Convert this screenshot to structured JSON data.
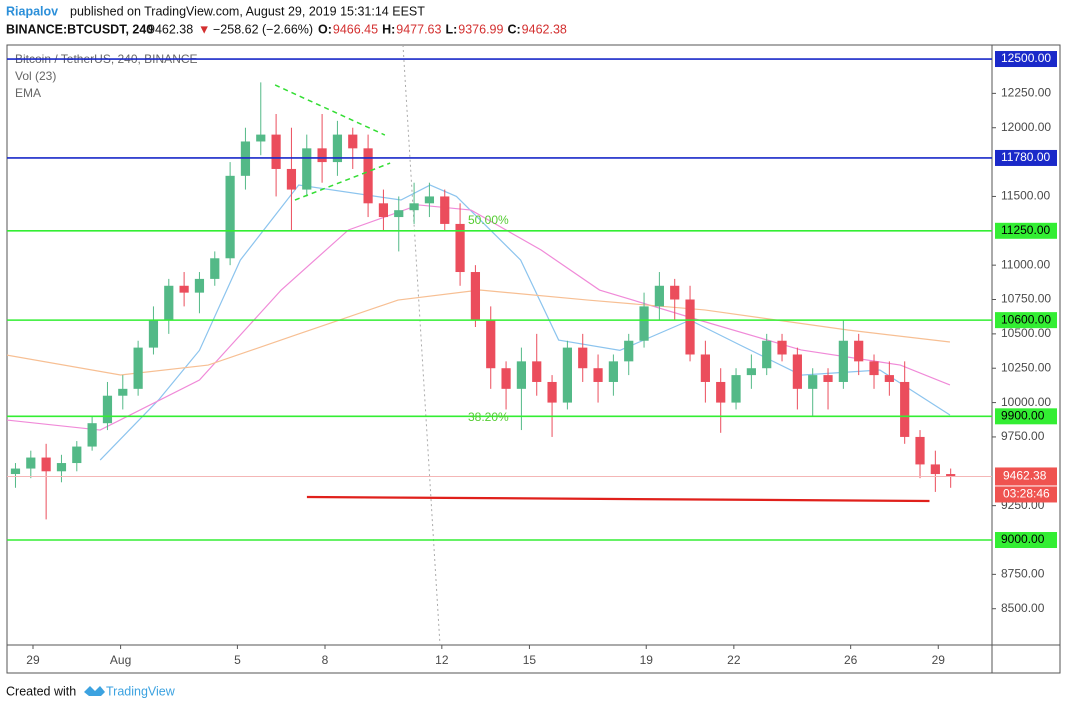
{
  "header": {
    "author": "Riapalov",
    "published": "published on TradingView.com, August 29, 2019 15:31:14 EEST",
    "symbol": "BINANCE:BTCUSDT, 240",
    "last": "9462.38",
    "arrow": "▼",
    "change": "−258.62 (−2.66%)",
    "ohlc": [
      {
        "label": "O:",
        "value": "9466.45"
      },
      {
        "label": "H:",
        "value": "9477.63"
      },
      {
        "label": "L:",
        "value": "9376.99"
      },
      {
        "label": "C:",
        "value": "9462.38"
      }
    ]
  },
  "chart_data": {
    "type": "candlestick",
    "legend": [
      "Bitcoin / TetherUS, 240, BINANCE",
      "Vol (23)",
      "EMA"
    ],
    "x": [
      -0.6,
      -0.075,
      0.45,
      0.975,
      1.5,
      2.025,
      2.55,
      3.075,
      3.6,
      4.125,
      4.65,
      5.175,
      5.7,
      6.225,
      6.75,
      7.275,
      7.8,
      8.325,
      8.85,
      9.375,
      9.9,
      10.425,
      10.95,
      11.475,
      12,
      12.525,
      13.05,
      13.575,
      14.1,
      14.625,
      15.15,
      15.675,
      16.2,
      16.725,
      17.25,
      17.775,
      18.3,
      18.825,
      19.35,
      19.875,
      20.4,
      20.925,
      21.45,
      21.975,
      22.5,
      23.025,
      23.55,
      24.075,
      24.6,
      25.125,
      25.65,
      26.175,
      26.7,
      27.225,
      27.75,
      28.275,
      28.8,
      29.325,
      29.85,
      30.375,
      30.9,
      31.425
    ],
    "open": [
      9480,
      9520,
      9600,
      9500,
      9560,
      9680,
      9850,
      10050,
      10100,
      10400,
      10600,
      10850,
      10800,
      10900,
      11050,
      11650,
      11900,
      11950,
      11700,
      11550,
      11850,
      11750,
      11950,
      11850,
      11450,
      11350,
      11400,
      11450,
      11500,
      11300,
      10950,
      10600,
      10250,
      10100,
      10300,
      10150,
      10000,
      10400,
      10250,
      10150,
      10300,
      10450,
      10700,
      10850,
      10750,
      10350,
      10150,
      10000,
      10200,
      10250,
      10450,
      10350,
      10100,
      10200,
      10150,
      10450,
      10300,
      10200,
      10150,
      9750,
      9550,
      9480
    ],
    "high": [
      9560,
      9650,
      9700,
      9620,
      9720,
      9900,
      10150,
      10200,
      10450,
      10700,
      10900,
      10950,
      10950,
      11100,
      11750,
      12000,
      12330,
      12100,
      12000,
      11950,
      12100,
      12050,
      12000,
      11950,
      11550,
      11500,
      11600,
      11600,
      11550,
      11450,
      11000,
      10700,
      10300,
      10400,
      10500,
      10200,
      10450,
      10500,
      10350,
      10350,
      10500,
      10800,
      10950,
      10900,
      10850,
      10450,
      10250,
      10250,
      10350,
      10500,
      10500,
      10400,
      10250,
      10250,
      10600,
      10500,
      10350,
      10300,
      10300,
      9800,
      9650,
      9520
    ],
    "low": [
      9380,
      9450,
      9150,
      9420,
      9500,
      9650,
      9800,
      9950,
      10050,
      10350,
      10500,
      10700,
      10650,
      10850,
      11000,
      11550,
      11800,
      11500,
      11250,
      11500,
      11600,
      11650,
      11700,
      11350,
      11250,
      11100,
      11300,
      11350,
      11250,
      10850,
      10550,
      10100,
      9950,
      9800,
      10050,
      9750,
      9950,
      10150,
      10000,
      10050,
      10200,
      10400,
      10600,
      10600,
      10300,
      10000,
      9780,
      9950,
      10100,
      10200,
      10300,
      9950,
      9900,
      9950,
      10100,
      10200,
      10100,
      10050,
      9700,
      9450,
      9350,
      9380
    ],
    "close": [
      9520,
      9600,
      9500,
      9560,
      9680,
      9850,
      10050,
      10100,
      10400,
      10600,
      10850,
      10800,
      10900,
      11050,
      11650,
      11900,
      11950,
      11700,
      11550,
      11850,
      11750,
      11950,
      11850,
      11450,
      11350,
      11400,
      11450,
      11500,
      11300,
      10950,
      10600,
      10250,
      10100,
      10300,
      10150,
      10000,
      10400,
      10250,
      10150,
      10300,
      10450,
      10700,
      10850,
      10750,
      10350,
      10150,
      10000,
      10200,
      10250,
      10450,
      10350,
      10100,
      10200,
      10150,
      10450,
      10300,
      10200,
      10150,
      9750,
      9550,
      9480,
      9462.38
    ],
    "up_color": "#53b987",
    "down_color": "#eb4d5c",
    "xlim": [
      -0.89,
      32.84
    ],
    "xticks": [
      {
        "value": 0,
        "label": "29"
      },
      {
        "value": 3,
        "label": "Aug"
      },
      {
        "value": 7,
        "label": "5"
      },
      {
        "value": 10,
        "label": "8"
      },
      {
        "value": 14,
        "label": "12"
      },
      {
        "value": 17,
        "label": "15"
      },
      {
        "value": 21,
        "label": "19"
      },
      {
        "value": 24,
        "label": "22"
      },
      {
        "value": 28,
        "label": "26"
      },
      {
        "value": 31,
        "label": "29"
      }
    ],
    "ylim": [
      8236,
      12602
    ],
    "yticks": [
      {
        "value": 8500,
        "label": "8500.00"
      },
      {
        "value": 8750,
        "label": "8750.00"
      },
      {
        "value": 9250,
        "label": "9250.00"
      },
      {
        "value": 9750,
        "label": "9750.00"
      },
      {
        "value": 10000,
        "label": "10000.00"
      },
      {
        "value": 10250,
        "label": "10250.00"
      },
      {
        "value": 10500,
        "label": "10500.00"
      },
      {
        "value": 10750,
        "label": "10750.00"
      },
      {
        "value": 11000,
        "label": "11000.00"
      },
      {
        "value": 11500,
        "label": "11500.00"
      },
      {
        "value": 12000,
        "label": "12000.00"
      },
      {
        "value": 12250,
        "label": "12250.00"
      }
    ],
    "levels": [
      {
        "value": 12500,
        "label": "12500.00",
        "color": "#1a29c9"
      },
      {
        "value": 11780,
        "label": "11780.00",
        "color": "#1a29c9"
      },
      {
        "value": 11250,
        "label": "11250.00",
        "color": "#33ee33"
      },
      {
        "value": 10600,
        "label": "10600.00",
        "color": "#33ee33"
      },
      {
        "value": 9900,
        "label": "9900.00",
        "color": "#33ee33"
      },
      {
        "value": 9000,
        "label": "9000.00",
        "color": "#33ee33"
      }
    ],
    "ema_lines": [
      {
        "color": "#8cc4ee",
        "x": [
          2.3,
          4.3,
          5.7,
          7.1,
          9.1,
          12.6,
          13.6,
          14.5,
          16.7,
          18,
          20.1,
          22.5,
          24.2,
          26.3,
          29,
          31.4
        ],
        "values": [
          9582,
          10019,
          10380,
          11037,
          11583,
          11474,
          11583,
          11500,
          11037,
          10455,
          10380,
          10600,
          10420,
          10200,
          10237,
          9910
        ]
      },
      {
        "color": "#f08ad8",
        "x": [
          -0.9,
          2.3,
          5.7,
          8.5,
          10.8,
          13.2,
          15,
          17.4,
          19.4,
          22.8,
          26.3,
          29.7,
          31.4
        ],
        "values": [
          9873,
          9800,
          10164,
          10819,
          11256,
          11438,
          11401,
          11110,
          10819,
          10601,
          10383,
          10273,
          10128
        ]
      },
      {
        "color": "#f7bf93",
        "x": [
          -0.9,
          3,
          6,
          9,
          12.5,
          15.3,
          19,
          23,
          27.9,
          31.4
        ],
        "values": [
          10346,
          10201,
          10273,
          10492,
          10746,
          10819,
          10746,
          10674,
          10528,
          10441
        ]
      }
    ],
    "trend_line": {
      "color": "#e0201b",
      "x": [
        9.38,
        30.7
      ],
      "values": [
        9313,
        9284
      ]
    },
    "triangle": {
      "color": "#33dd33",
      "lines": [
        {
          "x": [
            8.29,
            12.05
          ],
          "values": [
            12311,
            11947
          ]
        },
        {
          "x": [
            8.97,
            12.23
          ],
          "values": [
            11474,
            11743
          ]
        }
      ]
    },
    "fib_labels": [
      {
        "label": "50.00%",
        "value": 11321
      },
      {
        "label": "38.20%",
        "value": 9888
      }
    ],
    "price_color": "#ef5350",
    "countdown": "03:28:46"
  },
  "footer": {
    "text": "Created with",
    "brand": "TradingView"
  }
}
